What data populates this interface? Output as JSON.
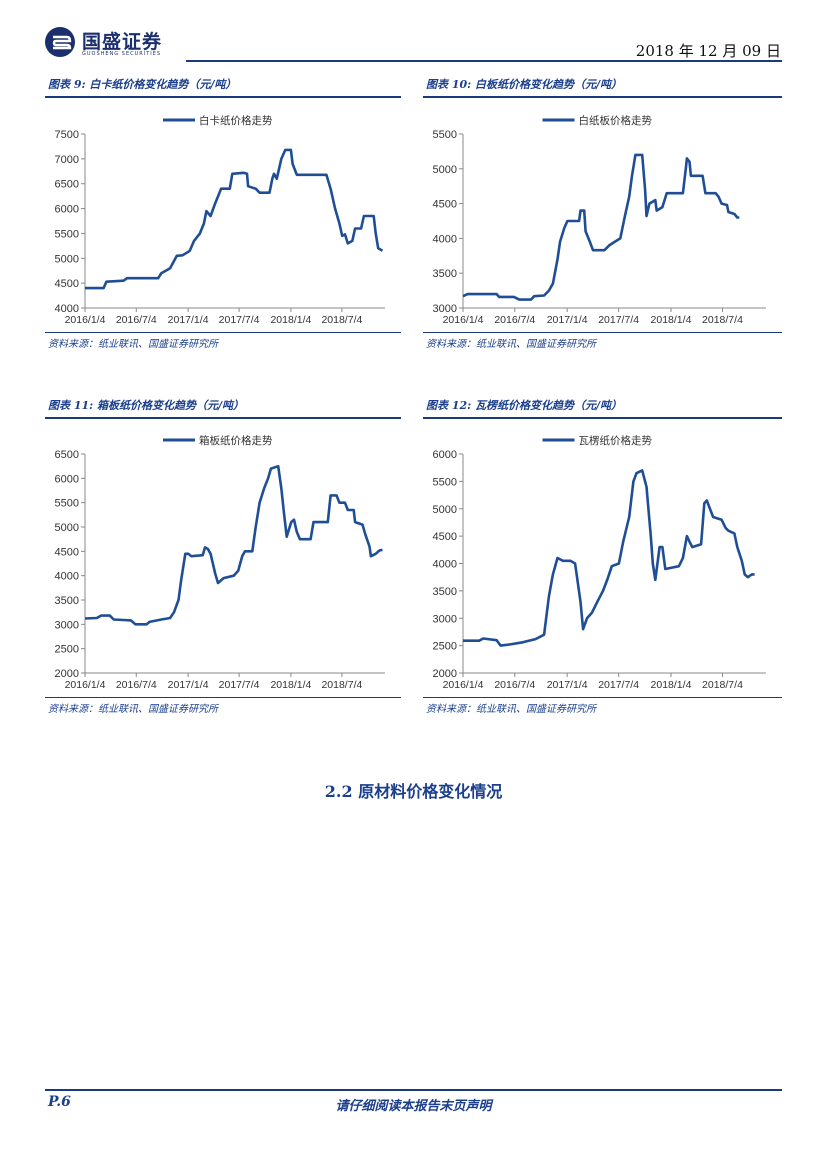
{
  "header": {
    "logo_text": "国盛证券",
    "logo_sub": "GUOSHENG SECURITIES",
    "date": "2018 年 12 月 09 日",
    "brand_color": "#1a3a7c"
  },
  "charts": [
    {
      "caption": "图表 9:  白卡纸价格变化趋势（元/吨）",
      "source": "资料来源：纸业联讯、国盛证券研究所"
    },
    {
      "caption": "图表 10:  白板纸价格变化趋势（元/吨）",
      "source": "资料来源：纸业联讯、国盛证券研究所"
    },
    {
      "caption": "图表 11:  箱板纸价格变化趋势（元/吨）",
      "source": "资料来源：纸业联讯、国盛证券研究所"
    },
    {
      "caption": "图表 12:  瓦楞纸价格变化趋势（元/吨）",
      "source": "资料来源：纸业联讯、国盛证券研究所"
    }
  ],
  "chart_data": [
    {
      "type": "line",
      "title": "白卡纸价格变化趋势（元/吨）",
      "x_ticks": [
        "2016/1/4",
        "2016/7/4",
        "2017/1/4",
        "2017/7/4",
        "2018/1/4",
        "2018/7/4"
      ],
      "xlim": [
        "2016/1/4",
        "2018/12/4"
      ],
      "ylim": [
        4000,
        7500
      ],
      "y_ticks": [
        4000,
        4500,
        5000,
        5500,
        6000,
        6500,
        7000,
        7500
      ],
      "legend": "top-center",
      "grid": false,
      "color": "#1f4e96",
      "series": [
        {
          "name": "白卡纸价格走势",
          "points": [
            [
              "2016/1/4",
              4400
            ],
            [
              "2016/3/10",
              4400
            ],
            [
              "2016/3/20",
              4530
            ],
            [
              "2016/5/20",
              4550
            ],
            [
              "2016/6/1",
              4600
            ],
            [
              "2016/9/20",
              4600
            ],
            [
              "2016/10/1",
              4700
            ],
            [
              "2016/11/1",
              4800
            ],
            [
              "2016/11/25",
              5050
            ],
            [
              "2016/12/15",
              5060
            ],
            [
              "2017/1/10",
              5150
            ],
            [
              "2017/1/25",
              5350
            ],
            [
              "2017/2/15",
              5500
            ],
            [
              "2017/3/1",
              5700
            ],
            [
              "2017/3/10",
              5950
            ],
            [
              "2017/3/25",
              5850
            ],
            [
              "2017/4/10",
              6100
            ],
            [
              "2017/5/1",
              6400
            ],
            [
              "2017/6/1",
              6400
            ],
            [
              "2017/6/10",
              6700
            ],
            [
              "2017/7/20",
              6720
            ],
            [
              "2017/8/1",
              6700
            ],
            [
              "2017/8/5",
              6450
            ],
            [
              "2017/9/1",
              6400
            ],
            [
              "2017/9/15",
              6320
            ],
            [
              "2017/10/20",
              6320
            ],
            [
              "2017/10/30",
              6600
            ],
            [
              "2017/11/5",
              6700
            ],
            [
              "2017/11/15",
              6600
            ],
            [
              "2017/12/1",
              7000
            ],
            [
              "2017/12/15",
              7180
            ],
            [
              "2018/1/4",
              7180
            ],
            [
              "2018/1/10",
              6900
            ],
            [
              "2018/1/25",
              6680
            ],
            [
              "2018/5/10",
              6680
            ],
            [
              "2018/5/25",
              6400
            ],
            [
              "2018/6/10",
              6000
            ],
            [
              "2018/6/25",
              5700
            ],
            [
              "2018/7/5",
              5450
            ],
            [
              "2018/7/15",
              5480
            ],
            [
              "2018/7/25",
              5300
            ],
            [
              "2018/8/10",
              5350
            ],
            [
              "2018/8/20",
              5600
            ],
            [
              "2018/9/10",
              5600
            ],
            [
              "2018/9/20",
              5850
            ],
            [
              "2018/10/15",
              5850
            ],
            [
              "2018/10/25",
              5850
            ],
            [
              "2018/11/1",
              5500
            ],
            [
              "2018/11/10",
              5200
            ],
            [
              "2018/11/25",
              5150
            ]
          ]
        }
      ]
    },
    {
      "type": "line",
      "title": "白板纸价格变化趋势（元/吨）",
      "x_ticks": [
        "2016/1/4",
        "2016/7/4",
        "2017/1/4",
        "2017/7/4",
        "2018/1/4",
        "2018/7/4"
      ],
      "xlim": [
        "2016/1/4",
        "2018/12/4"
      ],
      "ylim": [
        3000,
        5500
      ],
      "y_ticks": [
        3000,
        3500,
        4000,
        4500,
        5000,
        5500
      ],
      "legend": "top-center",
      "grid": false,
      "color": "#1f4e96",
      "series": [
        {
          "name": "白纸板价格走势",
          "points": [
            [
              "2016/1/4",
              3170
            ],
            [
              "2016/1/20",
              3200
            ],
            [
              "2016/5/1",
              3200
            ],
            [
              "2016/5/10",
              3160
            ],
            [
              "2016/7/1",
              3160
            ],
            [
              "2016/7/20",
              3120
            ],
            [
              "2016/8/30",
              3120
            ],
            [
              "2016/9/10",
              3170
            ],
            [
              "2016/10/15",
              3180
            ],
            [
              "2016/11/1",
              3250
            ],
            [
              "2016/11/15",
              3350
            ],
            [
              "2016/12/1",
              3700
            ],
            [
              "2016/12/10",
              3950
            ],
            [
              "2016/12/25",
              4150
            ],
            [
              "2017/1/5",
              4250
            ],
            [
              "2017/2/15",
              4250
            ],
            [
              "2017/2/20",
              4400
            ],
            [
              "2017/3/5",
              4400
            ],
            [
              "2017/3/10",
              4100
            ],
            [
              "2017/3/25",
              3950
            ],
            [
              "2017/4/5",
              3830
            ],
            [
              "2017/5/15",
              3830
            ],
            [
              "2017/6/1",
              3900
            ],
            [
              "2017/6/20",
              3950
            ],
            [
              "2017/7/10",
              4000
            ],
            [
              "2017/7/25",
              4300
            ],
            [
              "2017/8/10",
              4600
            ],
            [
              "2017/8/20",
              4900
            ],
            [
              "2017/9/1",
              5200
            ],
            [
              "2017/9/25",
              5200
            ],
            [
              "2017/10/5",
              4700
            ],
            [
              "2017/10/10",
              4320
            ],
            [
              "2017/10/20",
              4500
            ],
            [
              "2017/11/10",
              4550
            ],
            [
              "2017/11/15",
              4400
            ],
            [
              "2017/12/5",
              4450
            ],
            [
              "2017/12/20",
              4650
            ],
            [
              "2018/2/15",
              4650
            ],
            [
              "2018/2/25",
              5000
            ],
            [
              "2018/3/1",
              5150
            ],
            [
              "2018/3/10",
              5100
            ],
            [
              "2018/3/15",
              4900
            ],
            [
              "2018/4/25",
              4900
            ],
            [
              "2018/5/5",
              4650
            ],
            [
              "2018/6/10",
              4650
            ],
            [
              "2018/6/20",
              4600
            ],
            [
              "2018/7/1",
              4500
            ],
            [
              "2018/7/20",
              4480
            ],
            [
              "2018/7/25",
              4380
            ],
            [
              "2018/8/15",
              4350
            ],
            [
              "2018/8/25",
              4300
            ],
            [
              "2018/9/1",
              4300
            ]
          ]
        }
      ]
    },
    {
      "type": "line",
      "title": "箱板纸价格变化趋势（元/吨）",
      "x_ticks": [
        "2016/1/4",
        "2016/7/4",
        "2017/1/4",
        "2017/7/4",
        "2018/1/4",
        "2018/7/4"
      ],
      "xlim": [
        "2016/1/4",
        "2018/12/4"
      ],
      "ylim": [
        2000,
        6500
      ],
      "y_ticks": [
        2000,
        2500,
        3000,
        3500,
        4000,
        4500,
        5000,
        5500,
        6000,
        6500
      ],
      "legend": "top-center",
      "grid": false,
      "color": "#1f4e96",
      "series": [
        {
          "name": "箱板纸价格走势",
          "points": [
            [
              "2016/1/4",
              3120
            ],
            [
              "2016/2/15",
              3130
            ],
            [
              "2016/3/1",
              3180
            ],
            [
              "2016/4/1",
              3180
            ],
            [
              "2016/4/15",
              3100
            ],
            [
              "2016/6/15",
              3080
            ],
            [
              "2016/7/1",
              3000
            ],
            [
              "2016/8/10",
              3000
            ],
            [
              "2016/8/20",
              3050
            ],
            [
              "2016/10/1",
              3100
            ],
            [
              "2016/11/1",
              3130
            ],
            [
              "2016/11/15",
              3250
            ],
            [
              "2016/12/1",
              3500
            ],
            [
              "2016/12/10",
              3900
            ],
            [
              "2016/12/25",
              4450
            ],
            [
              "2017/1/5",
              4450
            ],
            [
              "2017/1/15",
              4400
            ],
            [
              "2017/2/25",
              4420
            ],
            [
              "2017/3/5",
              4580
            ],
            [
              "2017/3/15",
              4550
            ],
            [
              "2017/3/25",
              4450
            ],
            [
              "2017/4/10",
              4050
            ],
            [
              "2017/4/20",
              3850
            ],
            [
              "2017/5/10",
              3950
            ],
            [
              "2017/6/15",
              4000
            ],
            [
              "2017/7/1",
              4100
            ],
            [
              "2017/7/15",
              4400
            ],
            [
              "2017/7/25",
              4500
            ],
            [
              "2017/8/20",
              4500
            ],
            [
              "2017/9/1",
              5000
            ],
            [
              "2017/9/15",
              5500
            ],
            [
              "2017/10/1",
              5800
            ],
            [
              "2017/10/15",
              6000
            ],
            [
              "2017/10/25",
              6200
            ],
            [
              "2017/11/20",
              6250
            ],
            [
              "2017/12/1",
              5800
            ],
            [
              "2017/12/10",
              5300
            ],
            [
              "2017/12/20",
              4800
            ],
            [
              "2018/1/5",
              5100
            ],
            [
              "2018/1/15",
              5150
            ],
            [
              "2018/1/25",
              4900
            ],
            [
              "2018/2/5",
              4750
            ],
            [
              "2018/3/15",
              4750
            ],
            [
              "2018/3/25",
              5100
            ],
            [
              "2018/5/15",
              5100
            ],
            [
              "2018/5/25",
              5650
            ],
            [
              "2018/6/15",
              5650
            ],
            [
              "2018/6/25",
              5500
            ],
            [
              "2018/7/15",
              5500
            ],
            [
              "2018/7/25",
              5350
            ],
            [
              "2018/8/15",
              5350
            ],
            [
              "2018/8/20",
              5100
            ],
            [
              "2018/9/15",
              5050
            ],
            [
              "2018/9/25",
              4850
            ],
            [
              "2018/10/10",
              4600
            ],
            [
              "2018/10/15",
              4400
            ],
            [
              "2018/11/1",
              4450
            ],
            [
              "2018/11/15",
              4520
            ],
            [
              "2018/11/25",
              4530
            ]
          ]
        }
      ]
    },
    {
      "type": "line",
      "title": "瓦楞纸价格变化趋势（元/吨）",
      "x_ticks": [
        "2016/1/4",
        "2016/7/4",
        "2017/1/4",
        "2017/7/4",
        "2018/1/4",
        "2018/7/4"
      ],
      "xlim": [
        "2016/1/4",
        "2018/12/4"
      ],
      "ylim": [
        2000,
        6000
      ],
      "y_ticks": [
        2000,
        2500,
        3000,
        3500,
        4000,
        4500,
        5000,
        5500,
        6000
      ],
      "legend": "top-center",
      "grid": false,
      "color": "#1f4e96",
      "series": [
        {
          "name": "瓦楞纸价格走势",
          "points": [
            [
              "2016/1/4",
              2590
            ],
            [
              "2016/3/1",
              2590
            ],
            [
              "2016/3/15",
              2630
            ],
            [
              "2016/5/1",
              2600
            ],
            [
              "2016/5/15",
              2500
            ],
            [
              "2016/6/15",
              2520
            ],
            [
              "2016/8/1",
              2560
            ],
            [
              "2016/9/15",
              2620
            ],
            [
              "2016/10/15",
              2700
            ],
            [
              "2016/11/1",
              3400
            ],
            [
              "2016/11/15",
              3800
            ],
            [
              "2016/12/1",
              4100
            ],
            [
              "2016/12/20",
              4050
            ],
            [
              "2017/1/15",
              4050
            ],
            [
              "2017/2/1",
              4000
            ],
            [
              "2017/2/20",
              3300
            ],
            [
              "2017/3/1",
              2800
            ],
            [
              "2017/3/15",
              3000
            ],
            [
              "2017/4/1",
              3100
            ],
            [
              "2017/4/20",
              3300
            ],
            [
              "2017/5/10",
              3500
            ],
            [
              "2017/5/25",
              3700
            ],
            [
              "2017/6/10",
              3950
            ],
            [
              "2017/7/5",
              4000
            ],
            [
              "2017/7/20",
              4400
            ],
            [
              "2017/8/10",
              4850
            ],
            [
              "2017/8/25",
              5500
            ],
            [
              "2017/9/5",
              5650
            ],
            [
              "2017/9/25",
              5700
            ],
            [
              "2017/10/10",
              5400
            ],
            [
              "2017/10/25",
              4500
            ],
            [
              "2017/11/1",
              4000
            ],
            [
              "2017/11/10",
              3700
            ],
            [
              "2017/11/25",
              4300
            ],
            [
              "2017/12/5",
              4300
            ],
            [
              "2017/12/15",
              3900
            ],
            [
              "2018/2/1",
              3950
            ],
            [
              "2018/2/15",
              4100
            ],
            [
              "2018/3/1",
              4500
            ],
            [
              "2018/3/10",
              4400
            ],
            [
              "2018/3/20",
              4300
            ],
            [
              "2018/4/20",
              4350
            ],
            [
              "2018/5/1",
              5100
            ],
            [
              "2018/5/10",
              5150
            ],
            [
              "2018/6/1",
              4850
            ],
            [
              "2018/7/1",
              4800
            ],
            [
              "2018/7/15",
              4650
            ],
            [
              "2018/7/25",
              4600
            ],
            [
              "2018/8/15",
              4550
            ],
            [
              "2018/8/25",
              4300
            ],
            [
              "2018/9/10",
              4050
            ],
            [
              "2018/9/20",
              3800
            ],
            [
              "2018/10/1",
              3750
            ],
            [
              "2018/10/15",
              3800
            ],
            [
              "2018/10/25",
              3800
            ]
          ]
        }
      ]
    }
  ],
  "section": {
    "title": "2.2 原材料价格变化情况"
  },
  "footer": {
    "page": "P.6",
    "note": "请仔细阅读本报告末页声明"
  }
}
